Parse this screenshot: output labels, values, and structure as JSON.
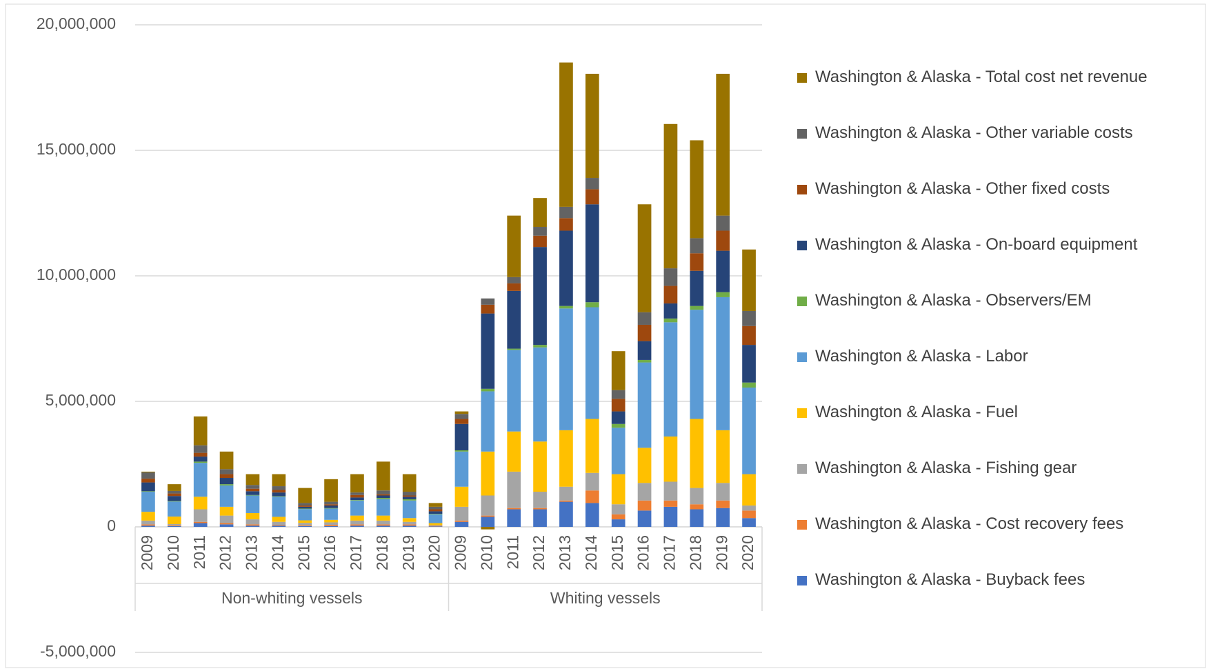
{
  "chart_data": {
    "type": "stacked-bar",
    "groups": [
      {
        "name": "Non-whiting vessels",
        "categories": [
          "2009",
          "2010",
          "2011",
          "2012",
          "2013",
          "2014",
          "2015",
          "2016",
          "2017",
          "2018",
          "2019",
          "2020"
        ]
      },
      {
        "name": "Whiting vessels",
        "categories": [
          "2009",
          "2010",
          "2011",
          "2012",
          "2013",
          "2014",
          "2015",
          "2016",
          "2017",
          "2018",
          "2019",
          "2020"
        ]
      }
    ],
    "series": [
      {
        "name": "Washington & Alaska - Buyback fees",
        "color": "#4472c4",
        "values": [
          50000,
          30000,
          150000,
          100000,
          50000,
          50000,
          30000,
          30000,
          50000,
          50000,
          50000,
          20000,
          200000,
          400000,
          700000,
          700000,
          1000000,
          950000,
          300000,
          650000,
          800000,
          700000,
          750000,
          350000
        ]
      },
      {
        "name": "Washington & Alaska - Cost recovery fees",
        "color": "#ed7d31",
        "values": [
          50000,
          30000,
          50000,
          50000,
          50000,
          30000,
          30000,
          50000,
          50000,
          50000,
          50000,
          20000,
          50000,
          50000,
          50000,
          50000,
          50000,
          500000,
          200000,
          400000,
          250000,
          200000,
          300000,
          300000
        ]
      },
      {
        "name": "Washington & Alaska - Fishing gear",
        "color": "#a5a5a5",
        "values": [
          150000,
          50000,
          500000,
          300000,
          200000,
          120000,
          100000,
          100000,
          150000,
          150000,
          100000,
          30000,
          550000,
          800000,
          1450000,
          650000,
          550000,
          700000,
          400000,
          700000,
          750000,
          650000,
          700000,
          200000
        ]
      },
      {
        "name": "Washington & Alaska - Fuel",
        "color": "#ffc000",
        "values": [
          350000,
          300000,
          500000,
          350000,
          250000,
          200000,
          100000,
          100000,
          200000,
          200000,
          150000,
          80000,
          800000,
          1750000,
          1600000,
          2000000,
          2250000,
          2150000,
          1200000,
          1400000,
          1800000,
          2750000,
          2100000,
          1250000
        ]
      },
      {
        "name": "Washington & Alaska - Labor",
        "color": "#5b9bd5",
        "values": [
          800000,
          600000,
          1350000,
          850000,
          700000,
          800000,
          450000,
          450000,
          600000,
          650000,
          700000,
          350000,
          1400000,
          2400000,
          3250000,
          3750000,
          4850000,
          4450000,
          1850000,
          3400000,
          4550000,
          4350000,
          5300000,
          3450000
        ]
      },
      {
        "name": "Washington & Alaska - Observers/EM",
        "color": "#70ad47",
        "values": [
          20000,
          20000,
          50000,
          50000,
          20000,
          20000,
          20000,
          20000,
          20000,
          50000,
          50000,
          20000,
          50000,
          100000,
          50000,
          100000,
          100000,
          200000,
          150000,
          100000,
          150000,
          150000,
          200000,
          200000
        ]
      },
      {
        "name": "Washington & Alaska - On-board equipment",
        "color": "#264478",
        "values": [
          350000,
          200000,
          200000,
          250000,
          150000,
          150000,
          70000,
          100000,
          100000,
          100000,
          100000,
          100000,
          1050000,
          3000000,
          2300000,
          3900000,
          3000000,
          3900000,
          500000,
          750000,
          600000,
          1400000,
          1650000,
          1500000
        ]
      },
      {
        "name": "Washington & Alaska - Other fixed costs",
        "color": "#9e480e",
        "values": [
          150000,
          100000,
          150000,
          150000,
          100000,
          100000,
          50000,
          50000,
          100000,
          50000,
          50000,
          80000,
          200000,
          350000,
          300000,
          450000,
          500000,
          600000,
          500000,
          650000,
          700000,
          700000,
          800000,
          750000
        ]
      },
      {
        "name": "Washington & Alaska - Other variable costs",
        "color": "#636363",
        "values": [
          250000,
          100000,
          300000,
          200000,
          150000,
          150000,
          100000,
          100000,
          100000,
          150000,
          150000,
          100000,
          200000,
          250000,
          250000,
          350000,
          450000,
          450000,
          350000,
          500000,
          700000,
          600000,
          600000,
          600000
        ]
      },
      {
        "name": "Washington & Alaska - Total cost net revenue",
        "color": "#997300",
        "values": [
          30000,
          270000,
          1150000,
          700000,
          430000,
          480000,
          600000,
          900000,
          730000,
          1150000,
          700000,
          150000,
          100000,
          -100000,
          2450000,
          1150000,
          5750000,
          4150000,
          1550000,
          4300000,
          5750000,
          3900000,
          5650000,
          2450000
        ]
      }
    ],
    "ylim": [
      -5000000,
      20000000
    ],
    "yticks": [
      {
        "value": -5000000,
        "label": "-5,000,000"
      },
      0,
      {
        "value": 5000000,
        "label": "5,000,000"
      },
      {
        "value": 10000000,
        "label": "10,000,000"
      },
      {
        "value": 15000000,
        "label": "15,000,000"
      },
      {
        "value": 20000000,
        "label": "20,000,000"
      }
    ],
    "grid": true,
    "legend": "right"
  }
}
